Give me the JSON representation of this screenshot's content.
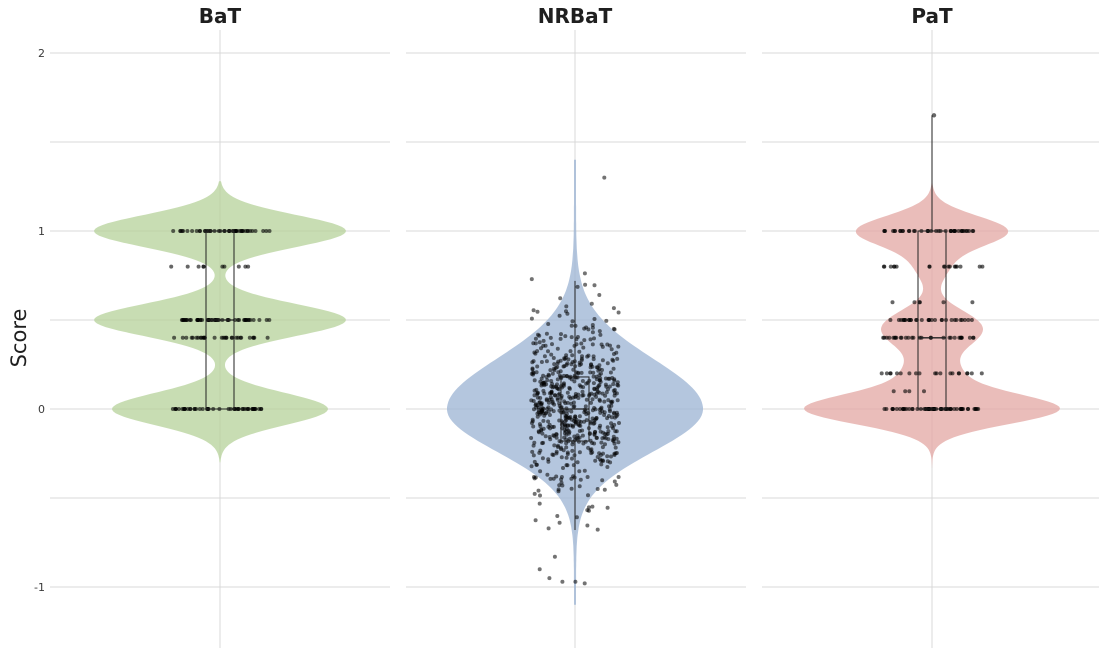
{
  "chart_data": {
    "type": "violin",
    "ylabel": "Score",
    "ylim": [
      -1.3,
      2.1
    ],
    "y_ticks": [
      {
        "value": 2,
        "label": "2"
      },
      {
        "value": 1,
        "label": "1"
      },
      {
        "value": 0,
        "label": "0"
      },
      {
        "value": -1,
        "label": "-1"
      }
    ],
    "panels": [
      {
        "title": "BaT",
        "color": "#b5d29a",
        "distribution": {
          "modes": [
            {
              "value": 1.0,
              "proportion": 0.35
            },
            {
              "value": 0.5,
              "proportion": 0.35
            },
            {
              "value": 0.0,
              "proportion": 0.3
            }
          ]
        },
        "box": {
          "q1": 0.0,
          "median": 0.5,
          "q3": 1.0,
          "whisker_low": 0.0,
          "whisker_high": 1.0
        },
        "points": [
          {
            "value": 1.0,
            "count": 45
          },
          {
            "value": 0.8,
            "count": 10
          },
          {
            "value": 0.5,
            "count": 50
          },
          {
            "value": 0.4,
            "count": 30
          },
          {
            "value": 0.0,
            "count": 48
          }
        ]
      },
      {
        "title": "NRBaT",
        "color": "#9bb3d3",
        "distribution": {
          "center": 0.0,
          "spread": 0.24,
          "min": -1.1,
          "max": 1.4
        },
        "box": {
          "q1": -0.18,
          "median": 0.0,
          "q3": 0.18,
          "whisker_low": -0.68,
          "whisker_high": 0.72
        },
        "outliers": [
          1.3,
          -0.83,
          -0.9,
          -0.97,
          -0.97,
          -0.98,
          -0.95
        ],
        "point_count": 650
      },
      {
        "title": "PaT",
        "color": "#e3a7a3",
        "distribution": {
          "modes": [
            {
              "value": 1.0,
              "proportion": 0.25
            },
            {
              "value": 0.8,
              "proportion": 0.05
            },
            {
              "value": 0.5,
              "proportion": 0.1
            },
            {
              "value": 0.4,
              "proportion": 0.1
            },
            {
              "value": 0.2,
              "proportion": 0.08
            },
            {
              "value": 0.0,
              "proportion": 0.42
            }
          ]
        },
        "box": {
          "q1": 0.0,
          "median": 0.4,
          "q3": 1.0,
          "whisker_low": 0.0,
          "whisker_high": 1.65
        },
        "outliers": [
          1.65
        ],
        "points": [
          {
            "value": 1.0,
            "count": 40
          },
          {
            "value": 0.8,
            "count": 18
          },
          {
            "value": 0.6,
            "count": 6
          },
          {
            "value": 0.5,
            "count": 30
          },
          {
            "value": 0.4,
            "count": 30
          },
          {
            "value": 0.2,
            "count": 20
          },
          {
            "value": 0.1,
            "count": 4
          },
          {
            "value": 0.0,
            "count": 60
          }
        ]
      }
    ]
  }
}
